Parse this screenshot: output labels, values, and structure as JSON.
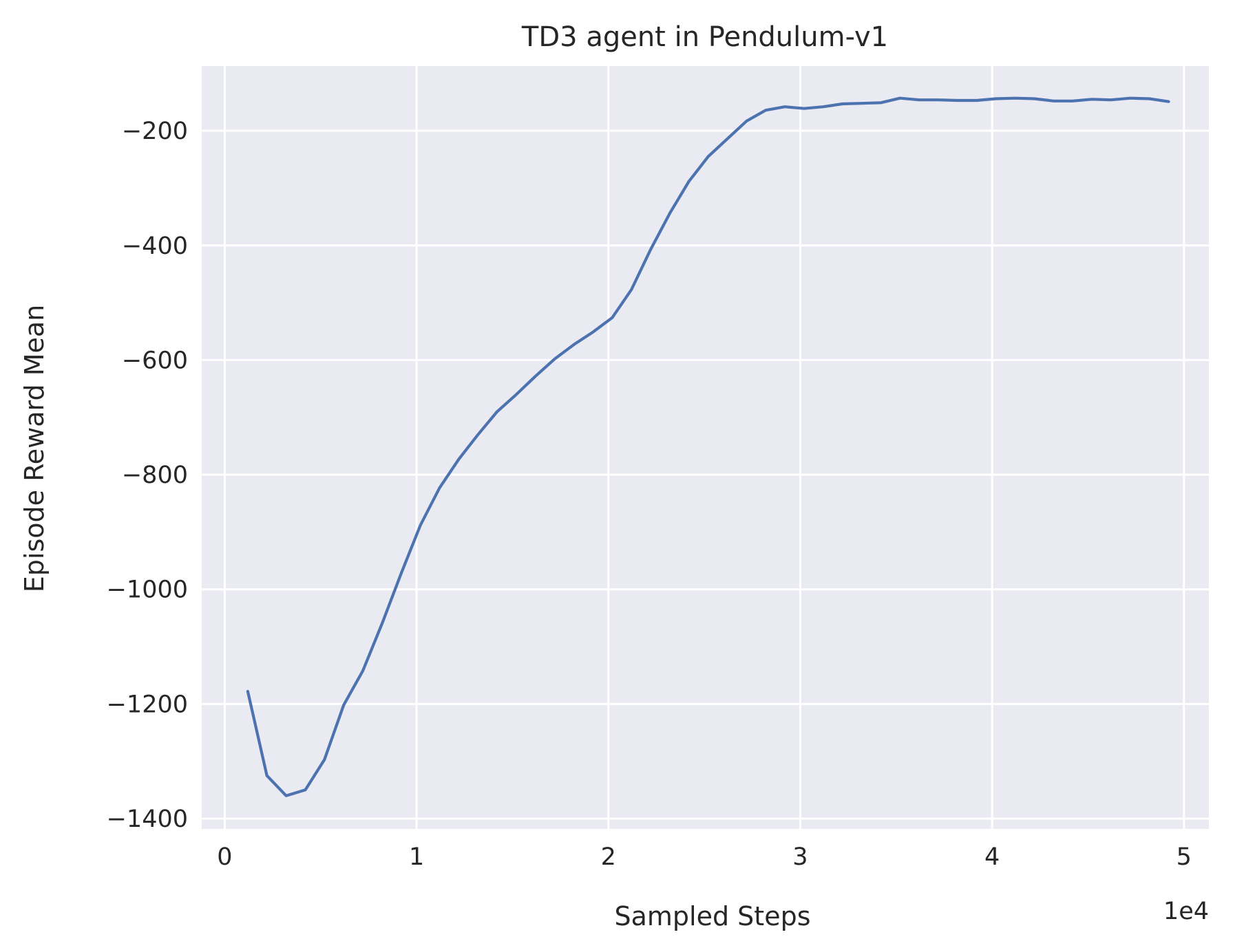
{
  "chart_data": {
    "type": "line",
    "title": "TD3 agent in Pendulum-v1",
    "xlabel": "Sampled Steps",
    "ylabel": "Episode Reward Mean",
    "x_offset_label": "1e4",
    "xlim": [
      -0.12,
      5.13
    ],
    "ylim": [
      -1418,
      -87
    ],
    "x_ticks": [
      0,
      1,
      2,
      3,
      4,
      5
    ],
    "x_tick_labels": [
      "0",
      "1",
      "2",
      "3",
      "4",
      "5"
    ],
    "y_ticks": [
      -1400,
      -1200,
      -1000,
      -800,
      -600,
      -400,
      -200
    ],
    "y_tick_labels": [
      "−1400",
      "−1200",
      "−1000",
      "−800",
      "−600",
      "−400",
      "−200"
    ],
    "grid": true,
    "series": [
      {
        "color": "#4c72b0",
        "x": [
          0.12,
          0.22,
          0.32,
          0.42,
          0.52,
          0.62,
          0.72,
          0.82,
          0.92,
          1.02,
          1.12,
          1.22,
          1.32,
          1.42,
          1.52,
          1.62,
          1.72,
          1.82,
          1.92,
          2.02,
          2.12,
          2.22,
          2.32,
          2.42,
          2.52,
          2.62,
          2.72,
          2.82,
          2.92,
          3.02,
          3.12,
          3.22,
          3.32,
          3.42,
          3.52,
          3.62,
          3.72,
          3.82,
          3.92,
          4.02,
          4.12,
          4.22,
          4.32,
          4.42,
          4.52,
          4.62,
          4.72,
          4.82,
          4.92
        ],
        "y": [
          -1178,
          -1325,
          -1360,
          -1350,
          -1297,
          -1202,
          -1142,
          -1060,
          -972,
          -888,
          -823,
          -773,
          -730,
          -690,
          -660,
          -628,
          -598,
          -573,
          -551,
          -526,
          -477,
          -407,
          -344,
          -288,
          -245,
          -214,
          -183,
          -164,
          -158,
          -161,
          -158,
          -153,
          -152,
          -151,
          -143,
          -146,
          -146,
          -147,
          -147,
          -144,
          -143,
          -144,
          -148,
          -148,
          -145,
          -146,
          -143,
          -144,
          -149
        ]
      }
    ]
  }
}
